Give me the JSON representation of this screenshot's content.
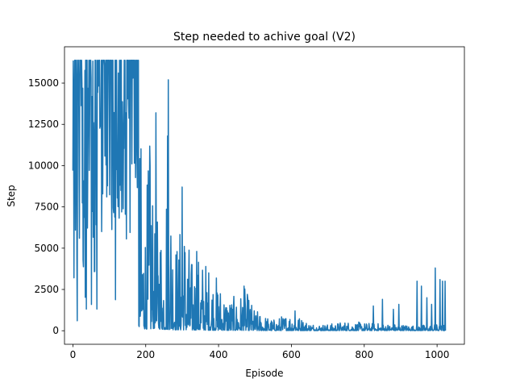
{
  "chart_data": {
    "type": "line",
    "title": "Step needed to achive goal (V2)",
    "xlabel": "Episode",
    "ylabel": "Step",
    "xlim": [
      -23,
      1075
    ],
    "ylim": [
      -820,
      17200
    ],
    "xticks": [
      0,
      200,
      400,
      600,
      800,
      1000
    ],
    "xtick_labels": [
      "0",
      "200",
      "400",
      "600",
      "800",
      "1000"
    ],
    "yticks": [
      0,
      2500,
      5000,
      7500,
      10000,
      12500,
      15000
    ],
    "ytick_labels": [
      "0",
      "2500",
      "5000",
      "7500",
      "10000",
      "12500",
      "15000"
    ],
    "grid": false,
    "line_color": "#1f77b4",
    "episode_count": 1024,
    "max_step": 16384,
    "envelope": {
      "x": [
        0,
        25,
        50,
        100,
        150,
        175,
        190,
        200,
        215,
        225,
        240,
        250,
        260,
        275,
        290,
        300,
        325,
        350,
        375,
        400,
        425,
        450,
        470,
        500,
        550,
        600,
        650,
        700,
        750,
        800,
        850,
        900,
        940,
        1000,
        1023
      ],
      "high": [
        16384,
        16384,
        16384,
        16384,
        16384,
        16384,
        11000,
        8000,
        13200,
        6000,
        8100,
        6500,
        15200,
        7800,
        5200,
        8700,
        4500,
        4800,
        4200,
        3200,
        2300,
        2000,
        2700,
        1300,
        700,
        1200,
        500,
        400,
        600,
        500,
        450,
        400,
        350,
        400,
        350
      ],
      "low": [
        1500,
        1000,
        800,
        600,
        300,
        200,
        150,
        100,
        100,
        150,
        100,
        80,
        80,
        60,
        50,
        50,
        40,
        40,
        30,
        30,
        20,
        20,
        20,
        10,
        10,
        10,
        10,
        10,
        10,
        10,
        10,
        10,
        10,
        10,
        10
      ]
    },
    "spikes": [
      {
        "x": 0,
        "y": 9700
      },
      {
        "x": 3,
        "y": 3200
      },
      {
        "x": 5,
        "y": 16384
      },
      {
        "x": 8,
        "y": 10200
      },
      {
        "x": 12,
        "y": 600
      },
      {
        "x": 63,
        "y": 16384
      },
      {
        "x": 180,
        "y": 16384
      },
      {
        "x": 262,
        "y": 15200
      },
      {
        "x": 228,
        "y": 13200
      },
      {
        "x": 212,
        "y": 10000
      },
      {
        "x": 260,
        "y": 11800
      },
      {
        "x": 300,
        "y": 8700
      },
      {
        "x": 340,
        "y": 4800
      },
      {
        "x": 470,
        "y": 2700
      },
      {
        "x": 610,
        "y": 1200
      },
      {
        "x": 825,
        "y": 1500
      },
      {
        "x": 850,
        "y": 1900
      },
      {
        "x": 880,
        "y": 1300
      },
      {
        "x": 895,
        "y": 1600
      },
      {
        "x": 945,
        "y": 3000
      },
      {
        "x": 957,
        "y": 2700
      },
      {
        "x": 972,
        "y": 2000
      },
      {
        "x": 985,
        "y": 1600
      },
      {
        "x": 995,
        "y": 3800
      },
      {
        "x": 1008,
        "y": 3100
      },
      {
        "x": 1015,
        "y": 3000
      },
      {
        "x": 1022,
        "y": 3000
      }
    ]
  }
}
